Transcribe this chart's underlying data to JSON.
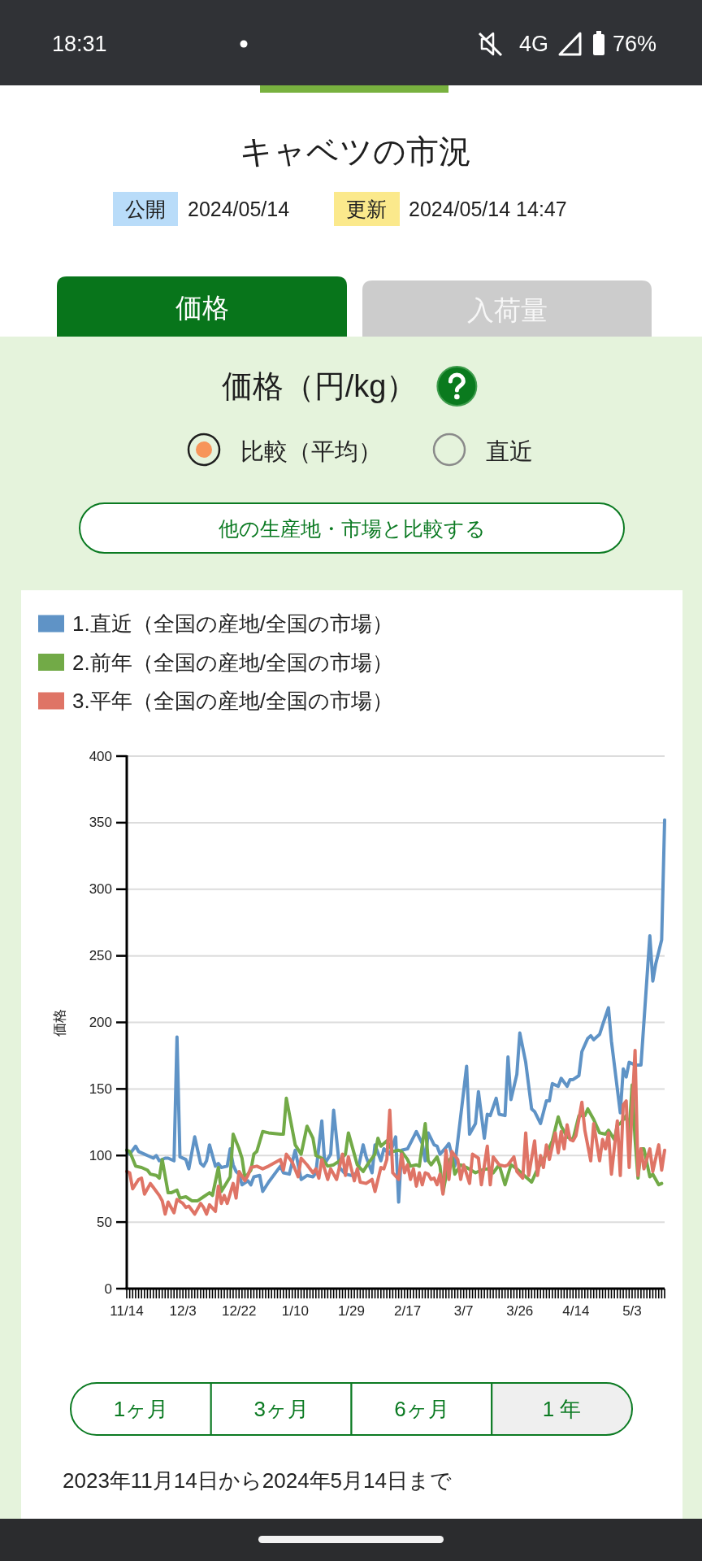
{
  "chart_data": {
    "type": "line",
    "title": "価格（円/kg）",
    "ylabel": "価格",
    "annotations": [
      "18:31",
      "4G",
      "76%",
      "キャベツの市況",
      "公開",
      "2024/05/14",
      "更新",
      "2024/05/14 14:47",
      "価格",
      "入荷量",
      "比較（平均）",
      "直近",
      "他の生産地・市場と比較する",
      "1ヶ月",
      "3ヶ月",
      "6ヶ月",
      "1 年",
      "2023年11月14日から2024年5月14日まで"
    ],
    "legend": "top left",
    "grid": "y",
    "line_style": "solid",
    "ylim": [
      0,
      400
    ],
    "yticks": [
      0,
      50,
      100,
      150,
      200,
      250,
      300,
      350,
      400
    ],
    "xlim": [
      "2023-11-14",
      "2024-05-14"
    ],
    "xticks": [
      {
        "value": "2023-11-14",
        "label": "11/14"
      },
      {
        "value": "2023-11-15",
        "label": null
      },
      {
        "value": "2023-11-16",
        "label": null
      },
      {
        "value": "2023-11-17",
        "label": null
      },
      {
        "value": "2023-11-18",
        "label": null
      },
      {
        "value": "2023-11-19",
        "label": null
      },
      {
        "value": "2023-11-20",
        "label": null
      },
      {
        "value": "2023-11-21",
        "label": null
      },
      {
        "value": "2023-11-22",
        "label": null
      },
      {
        "value": "2023-11-23",
        "label": null
      },
      {
        "value": "2023-11-24",
        "label": null
      },
      {
        "value": "2023-11-25",
        "label": null
      },
      {
        "value": "2023-11-26",
        "label": null
      },
      {
        "value": "2023-11-27",
        "label": null
      },
      {
        "value": "2023-11-28",
        "label": null
      },
      {
        "value": "2023-11-29",
        "label": null
      },
      {
        "value": "2023-11-30",
        "label": null
      },
      {
        "value": "2023-12-01",
        "label": null
      },
      {
        "value": "2023-12-02",
        "label": null
      },
      {
        "value": "2023-12-03",
        "label": "12/3"
      },
      {
        "value": "2023-12-04",
        "label": null
      },
      {
        "value": "2023-12-05",
        "label": null
      },
      {
        "value": "2023-12-06",
        "label": null
      },
      {
        "value": "2023-12-07",
        "label": null
      },
      {
        "value": "2023-12-08",
        "label": null
      },
      {
        "value": "2023-12-09",
        "label": null
      },
      {
        "value": "2023-12-10",
        "label": null
      },
      {
        "value": "2023-12-11",
        "label": null
      },
      {
        "value": "2023-12-12",
        "label": null
      },
      {
        "value": "2023-12-13",
        "label": null
      },
      {
        "value": "2023-12-14",
        "label": null
      },
      {
        "value": "2023-12-15",
        "label": null
      },
      {
        "value": "2023-12-16",
        "label": null
      },
      {
        "value": "2023-12-17",
        "label": null
      },
      {
        "value": "2023-12-18",
        "label": null
      },
      {
        "value": "2023-12-19",
        "label": null
      },
      {
        "value": "2023-12-20",
        "label": null
      },
      {
        "value": "2023-12-21",
        "label": null
      },
      {
        "value": "2023-12-22",
        "label": "12/22"
      },
      {
        "value": "2023-12-23",
        "label": null
      },
      {
        "value": "2023-12-24",
        "label": null
      },
      {
        "value": "2023-12-25",
        "label": null
      },
      {
        "value": "2023-12-26",
        "label": null
      },
      {
        "value": "2023-12-27",
        "label": null
      },
      {
        "value": "2023-12-28",
        "label": null
      },
      {
        "value": "2023-12-29",
        "label": null
      },
      {
        "value": "2023-12-30",
        "label": null
      },
      {
        "value": "2023-12-31",
        "label": null
      },
      {
        "value": "2024-01-01",
        "label": null
      },
      {
        "value": "2024-01-02",
        "label": null
      },
      {
        "value": "2024-01-03",
        "label": null
      },
      {
        "value": "2024-01-04",
        "label": null
      },
      {
        "value": "2024-01-05",
        "label": null
      },
      {
        "value": "2024-01-06",
        "label": null
      },
      {
        "value": "2024-01-07",
        "label": null
      },
      {
        "value": "2024-01-08",
        "label": null
      },
      {
        "value": "2024-01-09",
        "label": null
      },
      {
        "value": "2024-01-10",
        "label": "1/10"
      },
      {
        "value": "2024-01-11",
        "label": null
      },
      {
        "value": "2024-01-12",
        "label": null
      },
      {
        "value": "2024-01-13",
        "label": null
      },
      {
        "value": "2024-01-14",
        "label": null
      },
      {
        "value": "2024-01-15",
        "label": null
      },
      {
        "value": "2024-01-16",
        "label": null
      },
      {
        "value": "2024-01-17",
        "label": null
      },
      {
        "value": "2024-01-18",
        "label": null
      },
      {
        "value": "2024-01-19",
        "label": null
      },
      {
        "value": "2024-01-20",
        "label": null
      },
      {
        "value": "2024-01-21",
        "label": null
      },
      {
        "value": "2024-01-22",
        "label": null
      },
      {
        "value": "2024-01-23",
        "label": null
      },
      {
        "value": "2024-01-24",
        "label": null
      },
      {
        "value": "2024-01-25",
        "label": null
      },
      {
        "value": "2024-01-26",
        "label": null
      },
      {
        "value": "2024-01-27",
        "label": null
      },
      {
        "value": "2024-01-28",
        "label": null
      },
      {
        "value": "2024-01-29",
        "label": "1/29"
      },
      {
        "value": "2024-01-30",
        "label": null
      },
      {
        "value": "2024-01-31",
        "label": null
      },
      {
        "value": "2024-02-01",
        "label": null
      },
      {
        "value": "2024-02-02",
        "label": null
      },
      {
        "value": "2024-02-03",
        "label": null
      },
      {
        "value": "2024-02-04",
        "label": null
      },
      {
        "value": "2024-02-05",
        "label": null
      },
      {
        "value": "2024-02-06",
        "label": null
      },
      {
        "value": "2024-02-07",
        "label": null
      },
      {
        "value": "2024-02-08",
        "label": null
      },
      {
        "value": "2024-02-09",
        "label": null
      },
      {
        "value": "2024-02-10",
        "label": null
      },
      {
        "value": "2024-02-11",
        "label": null
      },
      {
        "value": "2024-02-12",
        "label": null
      },
      {
        "value": "2024-02-13",
        "label": null
      },
      {
        "value": "2024-02-14",
        "label": null
      },
      {
        "value": "2024-02-15",
        "label": null
      },
      {
        "value": "2024-02-16",
        "label": null
      },
      {
        "value": "2024-02-17",
        "label": "2/17"
      },
      {
        "value": "2024-02-18",
        "label": null
      },
      {
        "value": "2024-02-19",
        "label": null
      },
      {
        "value": "2024-02-20",
        "label": null
      },
      {
        "value": "2024-02-21",
        "label": null
      },
      {
        "value": "2024-02-22",
        "label": null
      },
      {
        "value": "2024-02-23",
        "label": null
      },
      {
        "value": "2024-02-24",
        "label": null
      },
      {
        "value": "2024-02-25",
        "label": null
      },
      {
        "value": "2024-02-26",
        "label": null
      },
      {
        "value": "2024-02-27",
        "label": null
      },
      {
        "value": "2024-02-28",
        "label": null
      },
      {
        "value": "2024-02-29",
        "label": null
      },
      {
        "value": "2024-03-01",
        "label": null
      },
      {
        "value": "2024-03-02",
        "label": null
      },
      {
        "value": "2024-03-03",
        "label": null
      },
      {
        "value": "2024-03-04",
        "label": null
      },
      {
        "value": "2024-03-05",
        "label": null
      },
      {
        "value": "2024-03-06",
        "label": null
      },
      {
        "value": "2024-03-07",
        "label": "3/7"
      },
      {
        "value": "2024-03-08",
        "label": null
      },
      {
        "value": "2024-03-09",
        "label": null
      },
      {
        "value": "2024-03-10",
        "label": null
      },
      {
        "value": "2024-03-11",
        "label": null
      },
      {
        "value": "2024-03-12",
        "label": null
      },
      {
        "value": "2024-03-13",
        "label": null
      },
      {
        "value": "2024-03-14",
        "label": null
      },
      {
        "value": "2024-03-15",
        "label": null
      },
      {
        "value": "2024-03-16",
        "label": null
      },
      {
        "value": "2024-03-17",
        "label": null
      },
      {
        "value": "2024-03-18",
        "label": null
      },
      {
        "value": "2024-03-19",
        "label": null
      },
      {
        "value": "2024-03-20",
        "label": null
      },
      {
        "value": "2024-03-21",
        "label": null
      },
      {
        "value": "2024-03-22",
        "label": null
      },
      {
        "value": "2024-03-23",
        "label": null
      },
      {
        "value": "2024-03-24",
        "label": null
      },
      {
        "value": "2024-03-25",
        "label": null
      },
      {
        "value": "2024-03-26",
        "label": "3/26"
      },
      {
        "value": "2024-03-27",
        "label": null
      },
      {
        "value": "2024-03-28",
        "label": null
      },
      {
        "value": "2024-03-29",
        "label": null
      },
      {
        "value": "2024-03-30",
        "label": null
      },
      {
        "value": "2024-03-31",
        "label": null
      },
      {
        "value": "2024-04-01",
        "label": null
      },
      {
        "value": "2024-04-02",
        "label": null
      },
      {
        "value": "2024-04-03",
        "label": null
      },
      {
        "value": "2024-04-04",
        "label": null
      },
      {
        "value": "2024-04-05",
        "label": null
      },
      {
        "value": "2024-04-06",
        "label": null
      },
      {
        "value": "2024-04-07",
        "label": null
      },
      {
        "value": "2024-04-08",
        "label": null
      },
      {
        "value": "2024-04-09",
        "label": null
      },
      {
        "value": "2024-04-10",
        "label": null
      },
      {
        "value": "2024-04-11",
        "label": null
      },
      {
        "value": "2024-04-12",
        "label": null
      },
      {
        "value": "2024-04-13",
        "label": null
      },
      {
        "value": "2024-04-14",
        "label": "4/14"
      },
      {
        "value": "2024-04-15",
        "label": null
      },
      {
        "value": "2024-04-16",
        "label": null
      },
      {
        "value": "2024-04-17",
        "label": null
      },
      {
        "value": "2024-04-18",
        "label": null
      },
      {
        "value": "2024-04-19",
        "label": null
      },
      {
        "value": "2024-04-20",
        "label": null
      },
      {
        "value": "2024-04-21",
        "label": null
      },
      {
        "value": "2024-04-22",
        "label": null
      },
      {
        "value": "2024-04-23",
        "label": null
      },
      {
        "value": "2024-04-24",
        "label": null
      },
      {
        "value": "2024-04-25",
        "label": null
      },
      {
        "value": "2024-04-26",
        "label": null
      },
      {
        "value": "2024-04-27",
        "label": null
      },
      {
        "value": "2024-04-28",
        "label": null
      },
      {
        "value": "2024-04-29",
        "label": null
      },
      {
        "value": "2024-04-30",
        "label": null
      },
      {
        "value": "2024-05-01",
        "label": null
      },
      {
        "value": "2024-05-02",
        "label": null
      },
      {
        "value": "2024-05-03",
        "label": "5/3"
      },
      {
        "value": "2024-05-04",
        "label": null
      },
      {
        "value": "2024-05-05",
        "label": null
      },
      {
        "value": "2024-05-06",
        "label": null
      },
      {
        "value": "2024-05-07",
        "label": null
      },
      {
        "value": "2024-05-08",
        "label": null
      },
      {
        "value": "2024-05-09",
        "label": null
      },
      {
        "value": "2024-05-10",
        "label": null
      },
      {
        "value": "2024-05-11",
        "label": null
      },
      {
        "value": "2024-05-12",
        "label": null
      },
      {
        "value": "2024-05-13",
        "label": null
      },
      {
        "value": "2024-05-14",
        "label": null
      }
    ],
    "series": [
      {
        "name": "1.直近（全国の産地/全国の市場）",
        "color": "#5f93c6",
        "x": [
          "2023-11-14",
          "2023-11-15",
          "2023-11-17",
          "2023-11-18",
          "2023-11-20",
          "2023-11-21",
          "2023-11-23",
          "2023-11-24",
          "2023-11-25",
          "2023-11-27",
          "2023-11-28",
          "2023-11-30",
          "2023-12-01",
          "2023-12-02",
          "2023-12-04",
          "2023-12-05",
          "2023-12-07",
          "2023-12-09",
          "2023-12-10",
          "2023-12-11",
          "2023-12-12",
          "2023-12-14",
          "2023-12-15",
          "2023-12-16",
          "2023-12-18",
          "2023-12-19",
          "2023-12-20",
          "2023-12-21",
          "2023-12-22",
          "2023-12-23",
          "2023-12-25",
          "2023-12-26",
          "2023-12-27",
          "2023-12-29",
          "2023-12-30",
          "2024-01-01",
          "2024-01-05",
          "2024-01-06",
          "2024-01-08",
          "2024-01-10",
          "2024-01-12",
          "2024-01-14",
          "2024-01-16",
          "2024-01-17",
          "2024-01-19",
          "2024-01-20",
          "2024-01-22",
          "2024-01-23",
          "2024-01-25",
          "2024-01-27",
          "2024-01-29",
          "2024-01-31",
          "2024-02-02",
          "2024-02-03",
          "2024-02-05",
          "2024-02-06",
          "2024-02-08",
          "2024-02-09",
          "2024-02-11",
          "2024-02-13",
          "2024-02-14",
          "2024-02-15",
          "2024-02-17",
          "2024-02-20",
          "2024-02-22",
          "2024-02-23",
          "2024-02-24",
          "2024-02-26",
          "2024-02-27",
          "2024-02-28",
          "2024-03-01",
          "2024-03-02",
          "2024-03-04",
          "2024-03-08",
          "2024-03-09",
          "2024-03-11",
          "2024-03-12",
          "2024-03-14",
          "2024-03-15",
          "2024-03-16",
          "2024-03-18",
          "2024-03-19",
          "2024-03-21",
          "2024-03-22",
          "2024-03-23",
          "2024-03-25",
          "2024-03-26",
          "2024-03-28",
          "2024-03-30",
          "2024-03-31",
          "2024-04-02",
          "2024-04-04",
          "2024-04-05",
          "2024-04-06",
          "2024-04-08",
          "2024-04-09",
          "2024-04-11",
          "2024-04-12",
          "2024-04-13",
          "2024-04-15",
          "2024-04-16",
          "2024-04-18",
          "2024-04-19",
          "2024-04-20",
          "2024-04-22",
          "2024-04-23",
          "2024-04-25",
          "2024-04-26",
          "2024-04-29",
          "2024-04-30",
          "2024-05-01",
          "2024-05-02",
          "2024-05-04",
          "2024-05-06",
          "2024-05-09",
          "2024-05-10",
          "2024-05-11",
          "2024-05-13",
          "2024-05-14"
        ],
        "values": [
          104,
          101,
          107,
          103,
          101,
          100,
          98,
          100,
          96,
          98,
          98,
          96,
          189,
          99,
          97,
          90,
          114,
          94,
          92,
          96,
          108,
          92,
          94,
          91,
          92,
          105,
          93,
          88,
          86,
          78,
          81,
          78,
          84,
          85,
          73,
          80,
          92,
          87,
          86,
          104,
          82,
          85,
          84,
          87,
          126,
          94,
          101,
          134,
          91,
          86,
          85,
          87,
          108,
          99,
          87,
          108,
          96,
          105,
          101,
          114,
          65,
          104,
          105,
          118,
          109,
          96,
          117,
          108,
          107,
          101,
          106,
          109,
          92,
          167,
          116,
          124,
          148,
          113,
          131,
          130,
          143,
          131,
          130,
          174,
          142,
          161,
          192,
          170,
          135,
          133,
          124,
          141,
          141,
          154,
          152,
          158,
          152,
          157,
          157,
          160,
          178,
          188,
          190,
          187,
          191,
          198,
          211,
          186,
          132,
          165,
          159,
          170,
          168,
          168,
          265,
          231,
          244,
          262,
          352
        ]
      },
      {
        "name": "2.前年（全国の産地/全国の市場）",
        "color": "#72aa47",
        "x": [
          "2023-11-14",
          "2023-11-15",
          "2023-11-17",
          "2023-11-19",
          "2023-11-21",
          "2023-11-22",
          "2023-11-24",
          "2023-11-25",
          "2023-11-26",
          "2023-11-28",
          "2023-11-29",
          "2023-12-01",
          "2023-12-02",
          "2023-12-04",
          "2023-12-06",
          "2023-12-08",
          "2023-12-10",
          "2023-12-12",
          "2023-12-13",
          "2023-12-15",
          "2023-12-16",
          "2023-12-19",
          "2023-12-20",
          "2023-12-22",
          "2023-12-23",
          "2023-12-24",
          "2023-12-26",
          "2023-12-27",
          "2023-12-28",
          "2023-12-30",
          "2024-01-01",
          "2024-01-05",
          "2024-01-06",
          "2024-01-07",
          "2024-01-10",
          "2024-01-12",
          "2024-01-14",
          "2024-01-16",
          "2024-01-17",
          "2024-01-19",
          "2024-01-21",
          "2024-01-23",
          "2024-01-25",
          "2024-01-27",
          "2024-01-28",
          "2024-01-30",
          "2024-01-31",
          "2024-02-02",
          "2024-02-04",
          "2024-02-06",
          "2024-02-07",
          "2024-02-08",
          "2024-02-10",
          "2024-02-12",
          "2024-02-14",
          "2024-02-15",
          "2024-02-17",
          "2024-02-18",
          "2024-02-20",
          "2024-02-21",
          "2024-02-23",
          "2024-02-24",
          "2024-02-25",
          "2024-02-27",
          "2024-02-28",
          "2024-02-29",
          "2024-03-02",
          "2024-03-03",
          "2024-03-04",
          "2024-03-06",
          "2024-03-08",
          "2024-03-11",
          "2024-03-13",
          "2024-03-15",
          "2024-03-17",
          "2024-03-19",
          "2024-03-21",
          "2024-03-23",
          "2024-03-25",
          "2024-03-27",
          "2024-03-30",
          "2024-04-01",
          "2024-04-04",
          "2024-04-06",
          "2024-04-08",
          "2024-04-09",
          "2024-04-11",
          "2024-04-13",
          "2024-04-15",
          "2024-04-17",
          "2024-04-18",
          "2024-04-20",
          "2024-04-22",
          "2024-04-24",
          "2024-04-25",
          "2024-04-27",
          "2024-04-28",
          "2024-04-29",
          "2024-05-01",
          "2024-05-02",
          "2024-05-03",
          "2024-05-04",
          "2024-05-05",
          "2024-05-06",
          "2024-05-07",
          "2024-05-09",
          "2024-05-10",
          "2024-05-12",
          "2024-05-13"
        ],
        "values": [
          104,
          103,
          92,
          91,
          89,
          86,
          85,
          83,
          97,
          72,
          72,
          74,
          68,
          69,
          66,
          66,
          69,
          72,
          70,
          91,
          73,
          84,
          116,
          105,
          98,
          83,
          89,
          101,
          103,
          118,
          117,
          116,
          116,
          143,
          108,
          101,
          122,
          113,
          100,
          98,
          92,
          93,
          96,
          101,
          117,
          101,
          93,
          88,
          95,
          101,
          113,
          107,
          111,
          103,
          104,
          103,
          97,
          92,
          93,
          92,
          124,
          96,
          93,
          99,
          92,
          72,
          96,
          99,
          86,
          93,
          91,
          87,
          89,
          90,
          87,
          93,
          78,
          93,
          90,
          86,
          80,
          90,
          101,
          111,
          129,
          122,
          114,
          112,
          130,
          130,
          135,
          127,
          117,
          116,
          119,
          112,
          123,
          124,
          130,
          117,
          153,
          112,
          83,
          105,
          105,
          84,
          86,
          78,
          79
        ]
      },
      {
        "name": "3.平年（全国の産地/全国の市場）",
        "color": "#df7466",
        "x": [
          "2023-11-14",
          "2023-11-15",
          "2023-11-16",
          "2023-11-18",
          "2023-11-19",
          "2023-11-20",
          "2023-11-22",
          "2023-11-23",
          "2023-11-25",
          "2023-11-26",
          "2023-11-27",
          "2023-11-28",
          "2023-11-30",
          "2023-12-01",
          "2023-12-03",
          "2023-12-04",
          "2023-12-05",
          "2023-12-07",
          "2023-12-09",
          "2023-12-10",
          "2023-12-11",
          "2023-12-12",
          "2023-12-14",
          "2023-12-15",
          "2023-12-16",
          "2023-12-17",
          "2023-12-18",
          "2023-12-20",
          "2023-12-21",
          "2023-12-22",
          "2023-12-24",
          "2023-12-25",
          "2023-12-26",
          "2023-12-28",
          "2023-12-30",
          "2024-01-01",
          "2024-01-05",
          "2024-01-06",
          "2024-01-07",
          "2024-01-09",
          "2024-01-11",
          "2024-01-12",
          "2024-01-14",
          "2024-01-16",
          "2024-01-17",
          "2024-01-18",
          "2024-01-19",
          "2024-01-21",
          "2024-01-22",
          "2024-01-24",
          "2024-01-26",
          "2024-01-27",
          "2024-01-28",
          "2024-01-30",
          "2024-01-31",
          "2024-02-01",
          "2024-02-03",
          "2024-02-05",
          "2024-02-06",
          "2024-02-08",
          "2024-02-09",
          "2024-02-10",
          "2024-02-11",
          "2024-02-12",
          "2024-02-14",
          "2024-02-15",
          "2024-02-16",
          "2024-02-17",
          "2024-02-18",
          "2024-02-19",
          "2024-02-20",
          "2024-02-21",
          "2024-02-22",
          "2024-02-23",
          "2024-02-24",
          "2024-02-25",
          "2024-02-26",
          "2024-02-27",
          "2024-02-28",
          "2024-02-29",
          "2024-03-01",
          "2024-03-02",
          "2024-03-03",
          "2024-03-05",
          "2024-03-06",
          "2024-03-07",
          "2024-03-09",
          "2024-03-10",
          "2024-03-12",
          "2024-03-13",
          "2024-03-15",
          "2024-03-16",
          "2024-03-17",
          "2024-03-19",
          "2024-03-21",
          "2024-03-22",
          "2024-03-24",
          "2024-03-25",
          "2024-03-27",
          "2024-03-28",
          "2024-03-29",
          "2024-03-31",
          "2024-04-01",
          "2024-04-02",
          "2024-04-03",
          "2024-04-04",
          "2024-04-05",
          "2024-04-07",
          "2024-04-08",
          "2024-04-09",
          "2024-04-10",
          "2024-04-11",
          "2024-04-12",
          "2024-04-13",
          "2024-04-14",
          "2024-04-16",
          "2024-04-17",
          "2024-04-19",
          "2024-04-20",
          "2024-04-22",
          "2024-04-23",
          "2024-04-24",
          "2024-04-25",
          "2024-04-26",
          "2024-04-28",
          "2024-04-29",
          "2024-04-30",
          "2024-05-01",
          "2024-05-02",
          "2024-05-04",
          "2024-05-05",
          "2024-05-06",
          "2024-05-07",
          "2024-05-09",
          "2024-05-10",
          "2024-05-12",
          "2024-05-13",
          "2024-05-14"
        ],
        "values": [
          88,
          87,
          75,
          82,
          83,
          71,
          79,
          76,
          70,
          66,
          56,
          65,
          57,
          67,
          64,
          61,
          62,
          56,
          64,
          61,
          56,
          63,
          58,
          77,
          64,
          70,
          64,
          79,
          68,
          88,
          81,
          85,
          91,
          92,
          90,
          92,
          97,
          89,
          101,
          95,
          84,
          98,
          93,
          87,
          90,
          83,
          97,
          82,
          90,
          82,
          101,
          85,
          99,
          81,
          90,
          80,
          79,
          82,
          73,
          91,
          90,
          97,
          134,
          87,
          82,
          101,
          87,
          93,
          82,
          90,
          77,
          87,
          78,
          87,
          86,
          82,
          83,
          78,
          86,
          71,
          104,
          82,
          103,
          97,
          82,
          93,
          79,
          101,
          98,
          78,
          107,
          78,
          99,
          93,
          92,
          93,
          99,
          88,
          83,
          117,
          85,
          111,
          85,
          100,
          91,
          108,
          97,
          117,
          102,
          118,
          105,
          123,
          112,
          111,
          115,
          140,
          119,
          96,
          124,
          96,
          112,
          105,
          117,
          86,
          126,
          85,
          138,
          141,
          91,
          179,
          85,
          105,
          90,
          105,
          88,
          108,
          89,
          104
        ]
      }
    ]
  }
}
